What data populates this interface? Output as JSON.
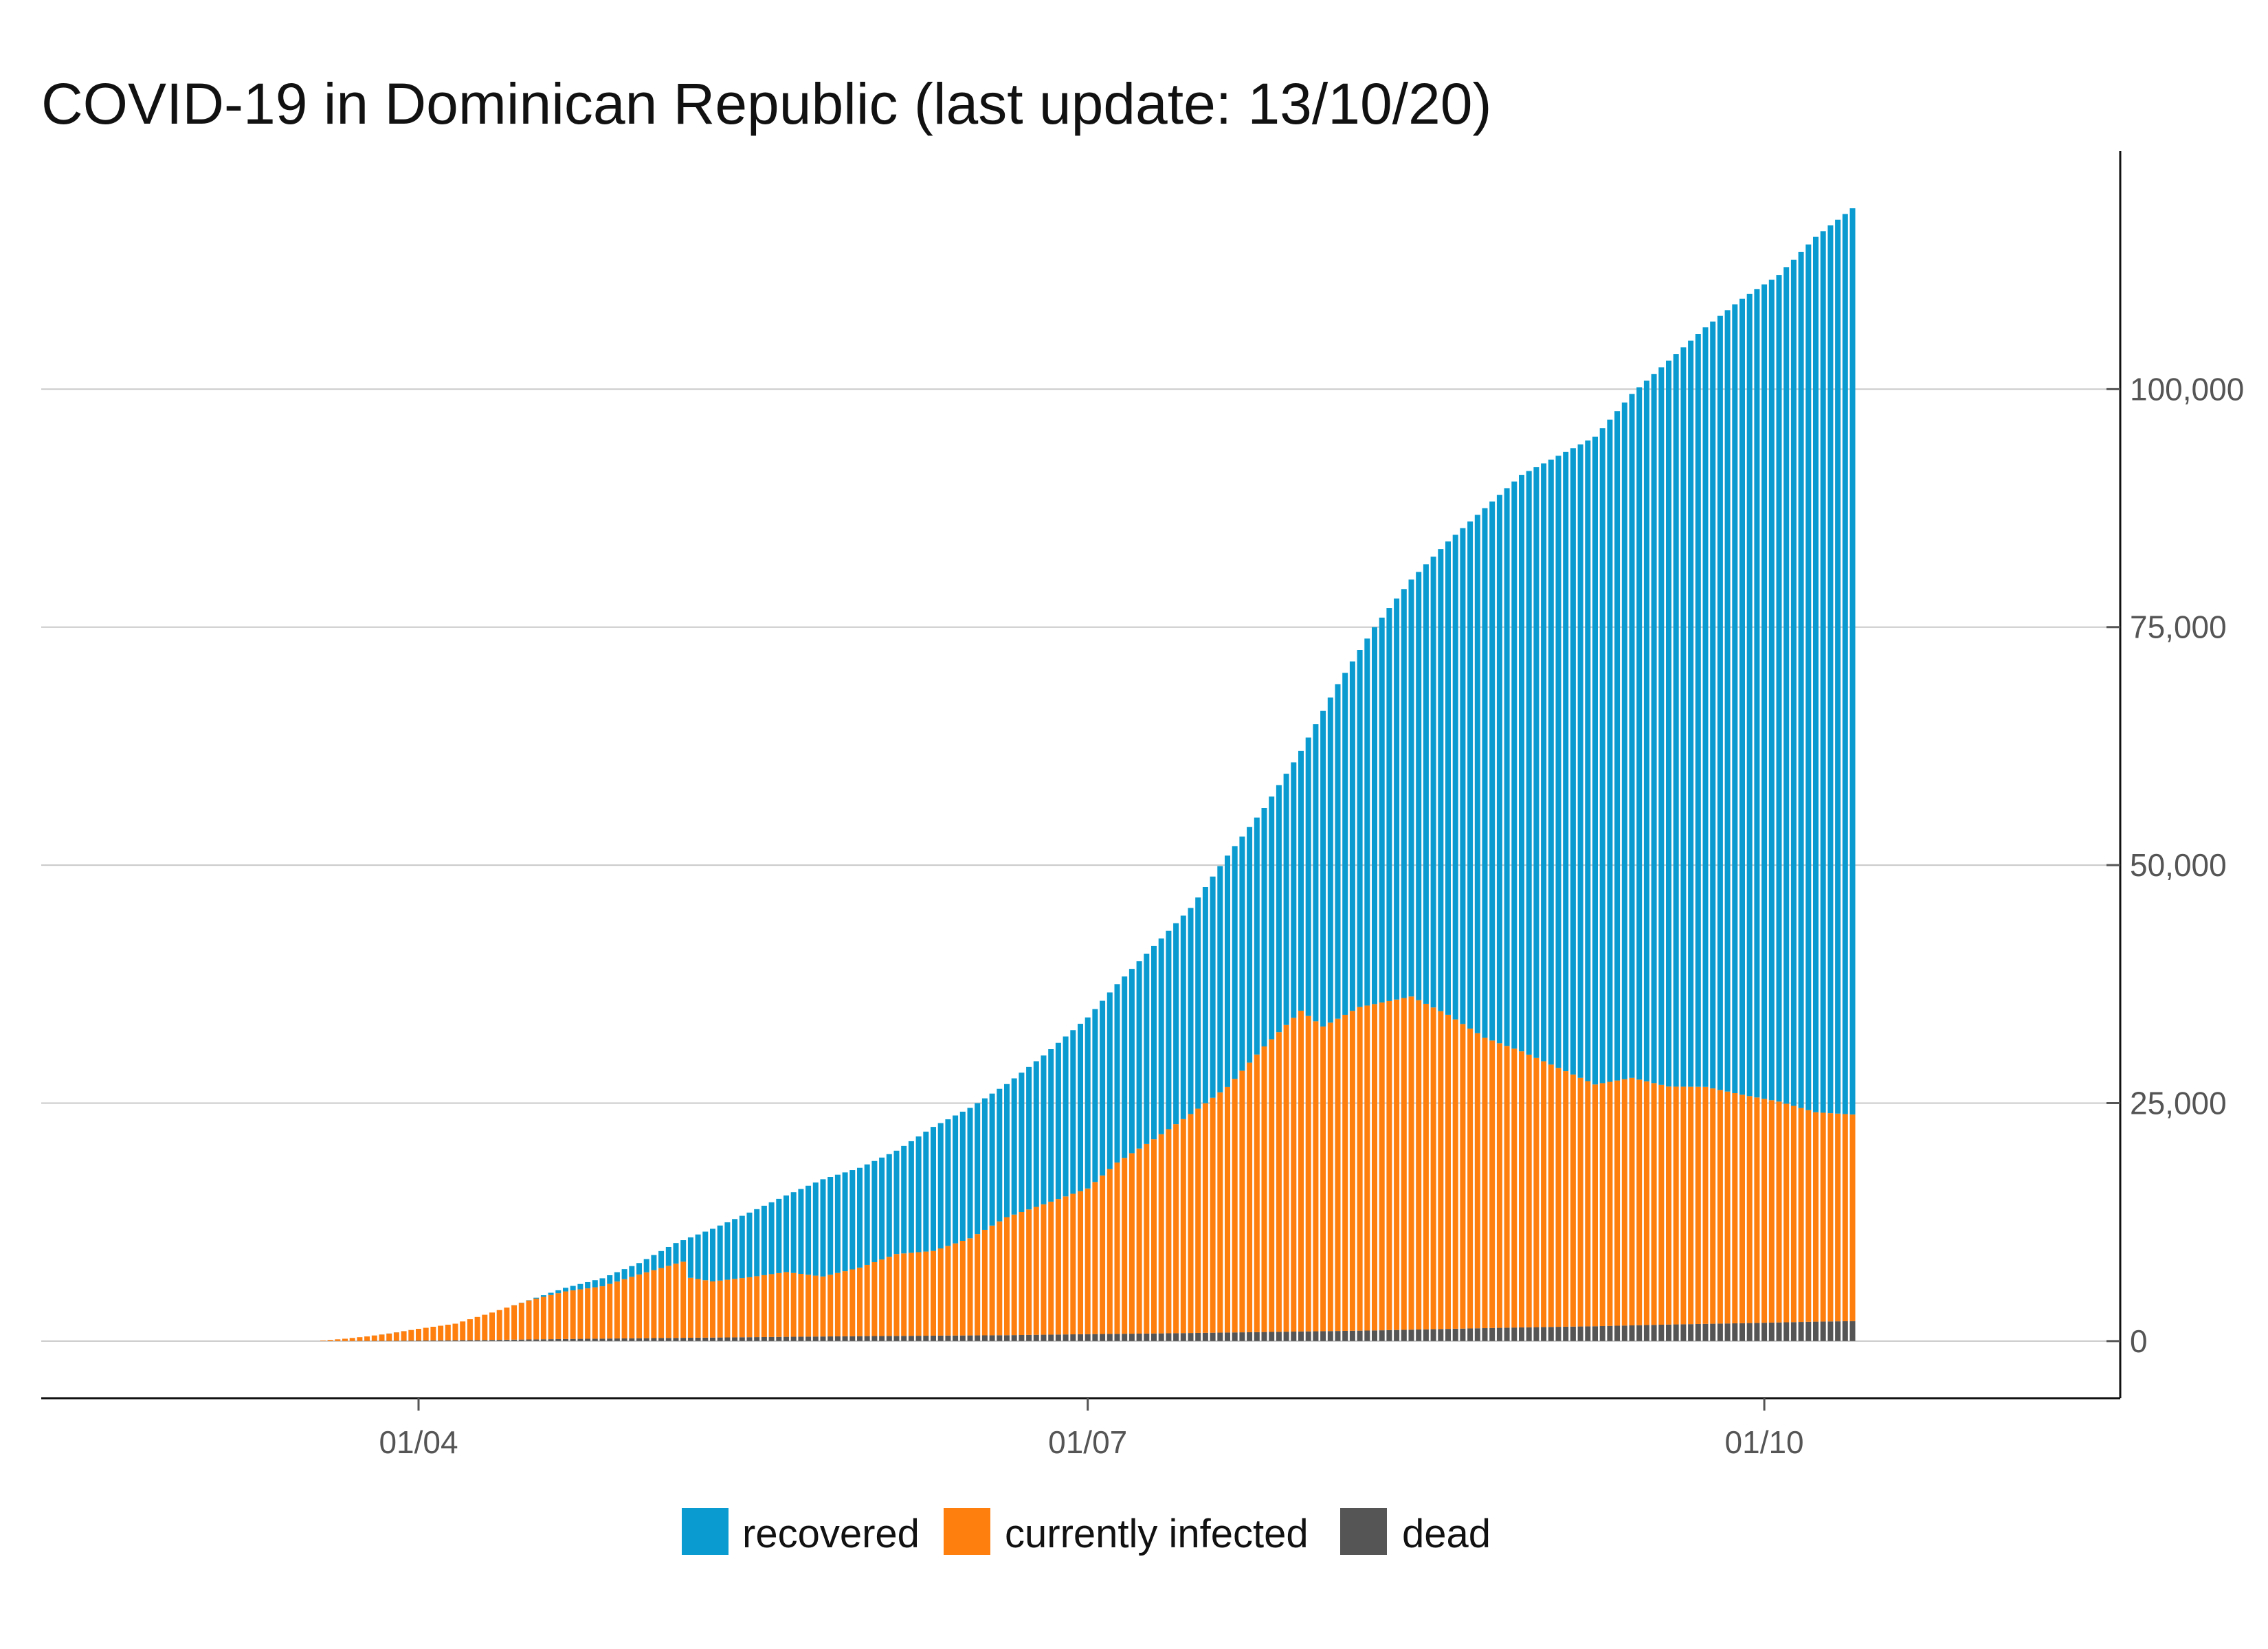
{
  "chart_data": {
    "type": "bar",
    "stacked": true,
    "title": "COVID-19 in Dominican Republic (last update: 13/10/20)",
    "xlabel": "",
    "ylabel": "",
    "ylim": [
      -6000,
      125000
    ],
    "yticks": [
      0,
      25000,
      50000,
      75000,
      100000
    ],
    "ytick_labels": [
      "0",
      "25,000",
      "50,000",
      "75,000",
      "100,000"
    ],
    "y_axis_position": "right",
    "xticks": [
      {
        "day_index": 50,
        "label": "01/04"
      },
      {
        "day_index": 141,
        "label": "01/07"
      },
      {
        "day_index": 233,
        "label": "01/10"
      }
    ],
    "x_start": "11/02/20",
    "x_end": "13/10/20",
    "days": 246,
    "legend": {
      "position": "bottom",
      "entries": [
        {
          "key": "recovered",
          "label": "recovered",
          "color": "#0a9bd0"
        },
        {
          "key": "infected",
          "label": "currently infected",
          "color": "#ff7f0e"
        },
        {
          "key": "dead",
          "label": "dead",
          "color": "#555555"
        }
      ]
    },
    "stack_order": [
      "dead",
      "infected",
      "recovered"
    ],
    "keypoints": {
      "dead": [
        [
          0,
          0
        ],
        [
          36,
          0
        ],
        [
          46,
          30
        ],
        [
          50,
          60
        ],
        [
          60,
          120
        ],
        [
          70,
          220
        ],
        [
          80,
          300
        ],
        [
          90,
          370
        ],
        [
          100,
          450
        ],
        [
          110,
          520
        ],
        [
          120,
          570
        ],
        [
          130,
          620
        ],
        [
          141,
          730
        ],
        [
          150,
          800
        ],
        [
          160,
          900
        ],
        [
          170,
          1010
        ],
        [
          180,
          1120
        ],
        [
          190,
          1280
        ],
        [
          200,
          1440
        ],
        [
          210,
          1560
        ],
        [
          220,
          1740
        ],
        [
          230,
          1880
        ],
        [
          240,
          2040
        ],
        [
          245,
          2100
        ]
      ],
      "total": [
        [
          0,
          0
        ],
        [
          36,
          0
        ],
        [
          37,
          60
        ],
        [
          40,
          250
        ],
        [
          43,
          490
        ],
        [
          46,
          800
        ],
        [
          50,
          1290
        ],
        [
          55,
          1830
        ],
        [
          60,
          3000
        ],
        [
          65,
          4300
        ],
        [
          70,
          5600
        ],
        [
          75,
          6600
        ],
        [
          80,
          8200
        ],
        [
          85,
          10300
        ],
        [
          90,
          11800
        ],
        [
          95,
          13500
        ],
        [
          100,
          15300
        ],
        [
          105,
          17000
        ],
        [
          110,
          18200
        ],
        [
          115,
          20000
        ],
        [
          120,
          22500
        ],
        [
          125,
          24500
        ],
        [
          130,
          27000
        ],
        [
          135,
          30000
        ],
        [
          141,
          34000
        ],
        [
          145,
          37500
        ],
        [
          150,
          41500
        ],
        [
          155,
          45500
        ],
        [
          160,
          51000
        ],
        [
          165,
          56000
        ],
        [
          170,
          62000
        ],
        [
          175,
          69000
        ],
        [
          180,
          75000
        ],
        [
          185,
          80000
        ],
        [
          190,
          84000
        ],
        [
          195,
          87500
        ],
        [
          200,
          91000
        ],
        [
          205,
          93000
        ],
        [
          210,
          95000
        ],
        [
          215,
          99500
        ],
        [
          220,
          103000
        ],
        [
          225,
          106500
        ],
        [
          230,
          109500
        ],
        [
          233,
          111000
        ],
        [
          235,
          112000
        ],
        [
          240,
          116000
        ],
        [
          245,
          119000
        ]
      ],
      "infected": [
        [
          0,
          0
        ],
        [
          36,
          0
        ],
        [
          37,
          60
        ],
        [
          40,
          240
        ],
        [
          43,
          470
        ],
        [
          46,
          760
        ],
        [
          50,
          1230
        ],
        [
          55,
          1760
        ],
        [
          60,
          2900
        ],
        [
          65,
          4100
        ],
        [
          70,
          5000
        ],
        [
          75,
          5500
        ],
        [
          80,
          6700
        ],
        [
          85,
          7800
        ],
        [
          86,
          8000
        ],
        [
          87,
          6300
        ],
        [
          90,
          5900
        ],
        [
          95,
          6300
        ],
        [
          100,
          6800
        ],
        [
          105,
          6300
        ],
        [
          110,
          7200
        ],
        [
          115,
          8600
        ],
        [
          120,
          8900
        ],
        [
          125,
          10200
        ],
        [
          130,
          12400
        ],
        [
          135,
          13700
        ],
        [
          141,
          15300
        ],
        [
          145,
          18000
        ],
        [
          150,
          20400
        ],
        [
          155,
          23000
        ],
        [
          160,
          25800
        ],
        [
          165,
          30000
        ],
        [
          170,
          33700
        ],
        [
          173,
          32000
        ],
        [
          178,
          34000
        ],
        [
          185,
          35000
        ],
        [
          190,
          33000
        ],
        [
          195,
          30500
        ],
        [
          200,
          29000
        ],
        [
          205,
          27200
        ],
        [
          210,
          25400
        ],
        [
          215,
          26000
        ],
        [
          220,
          25000
        ],
        [
          225,
          24900
        ],
        [
          230,
          24000
        ],
        [
          235,
          23200
        ],
        [
          240,
          22000
        ],
        [
          245,
          21700
        ]
      ]
    }
  }
}
